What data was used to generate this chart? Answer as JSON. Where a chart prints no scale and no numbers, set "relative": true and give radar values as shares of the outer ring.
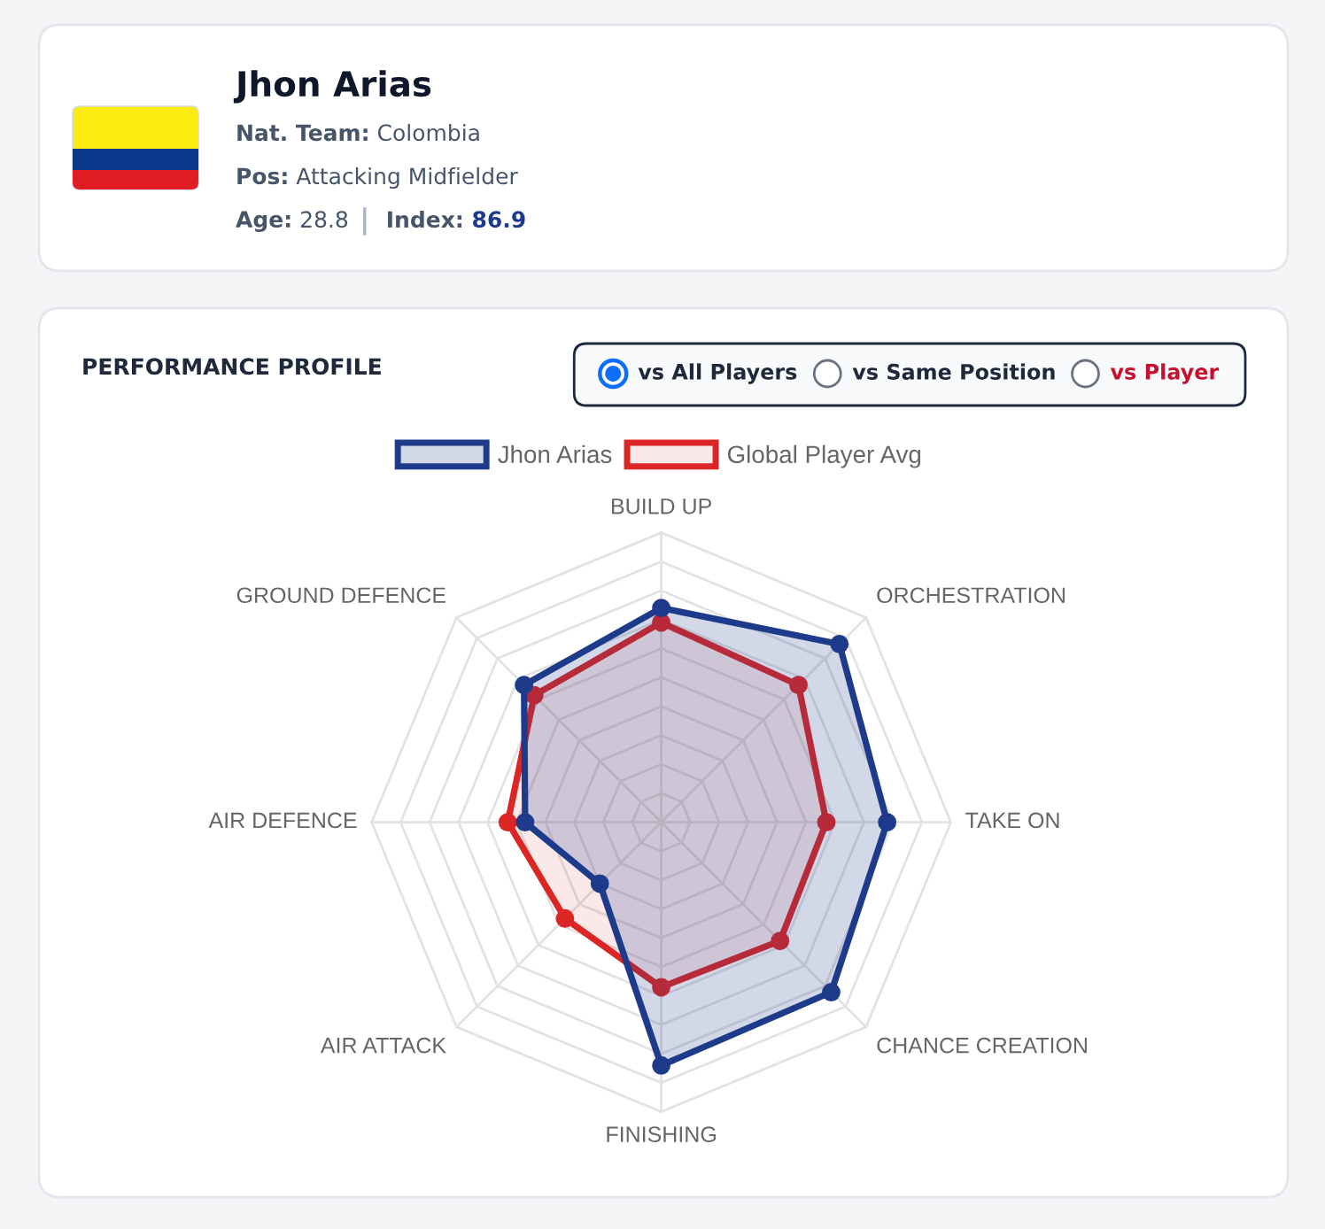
{
  "chart_data": [
    {
      "type": "other",
      "title": "Jhon Arias",
      "annotations": [
        "Nat. Team: Colombia",
        "Pos: Attacking Midfielder",
        "Age: 28.8",
        "Index: 86.9"
      ]
    },
    {
      "type": "radar",
      "title": "PERFORMANCE PROFILE",
      "annotations": [
        "vs All Players",
        "vs Same Position",
        "vs Player"
      ],
      "categories": [
        "BUILD UP",
        "ORCHESTRATION",
        "TAKE ON",
        "CHANCE CREATION",
        "FINISHING",
        "AIR ATTACK",
        "AIR DEFENCE",
        "GROUND DEFENCE"
      ],
      "relative": true,
      "grid": true,
      "legend": "top",
      "marker": "circle",
      "line_style": "solid",
      "series": [
        {
          "name": "Jhon Arias",
          "color": "#1e3a8a",
          "values": [
            0.74,
            0.87,
            0.78,
            0.83,
            0.84,
            0.3,
            0.47,
            0.67
          ]
        },
        {
          "name": "Global Player Avg",
          "color": "#dc2626",
          "values": [
            0.69,
            0.67,
            0.57,
            0.58,
            0.57,
            0.47,
            0.53,
            0.62
          ]
        }
      ]
    }
  ]
}
